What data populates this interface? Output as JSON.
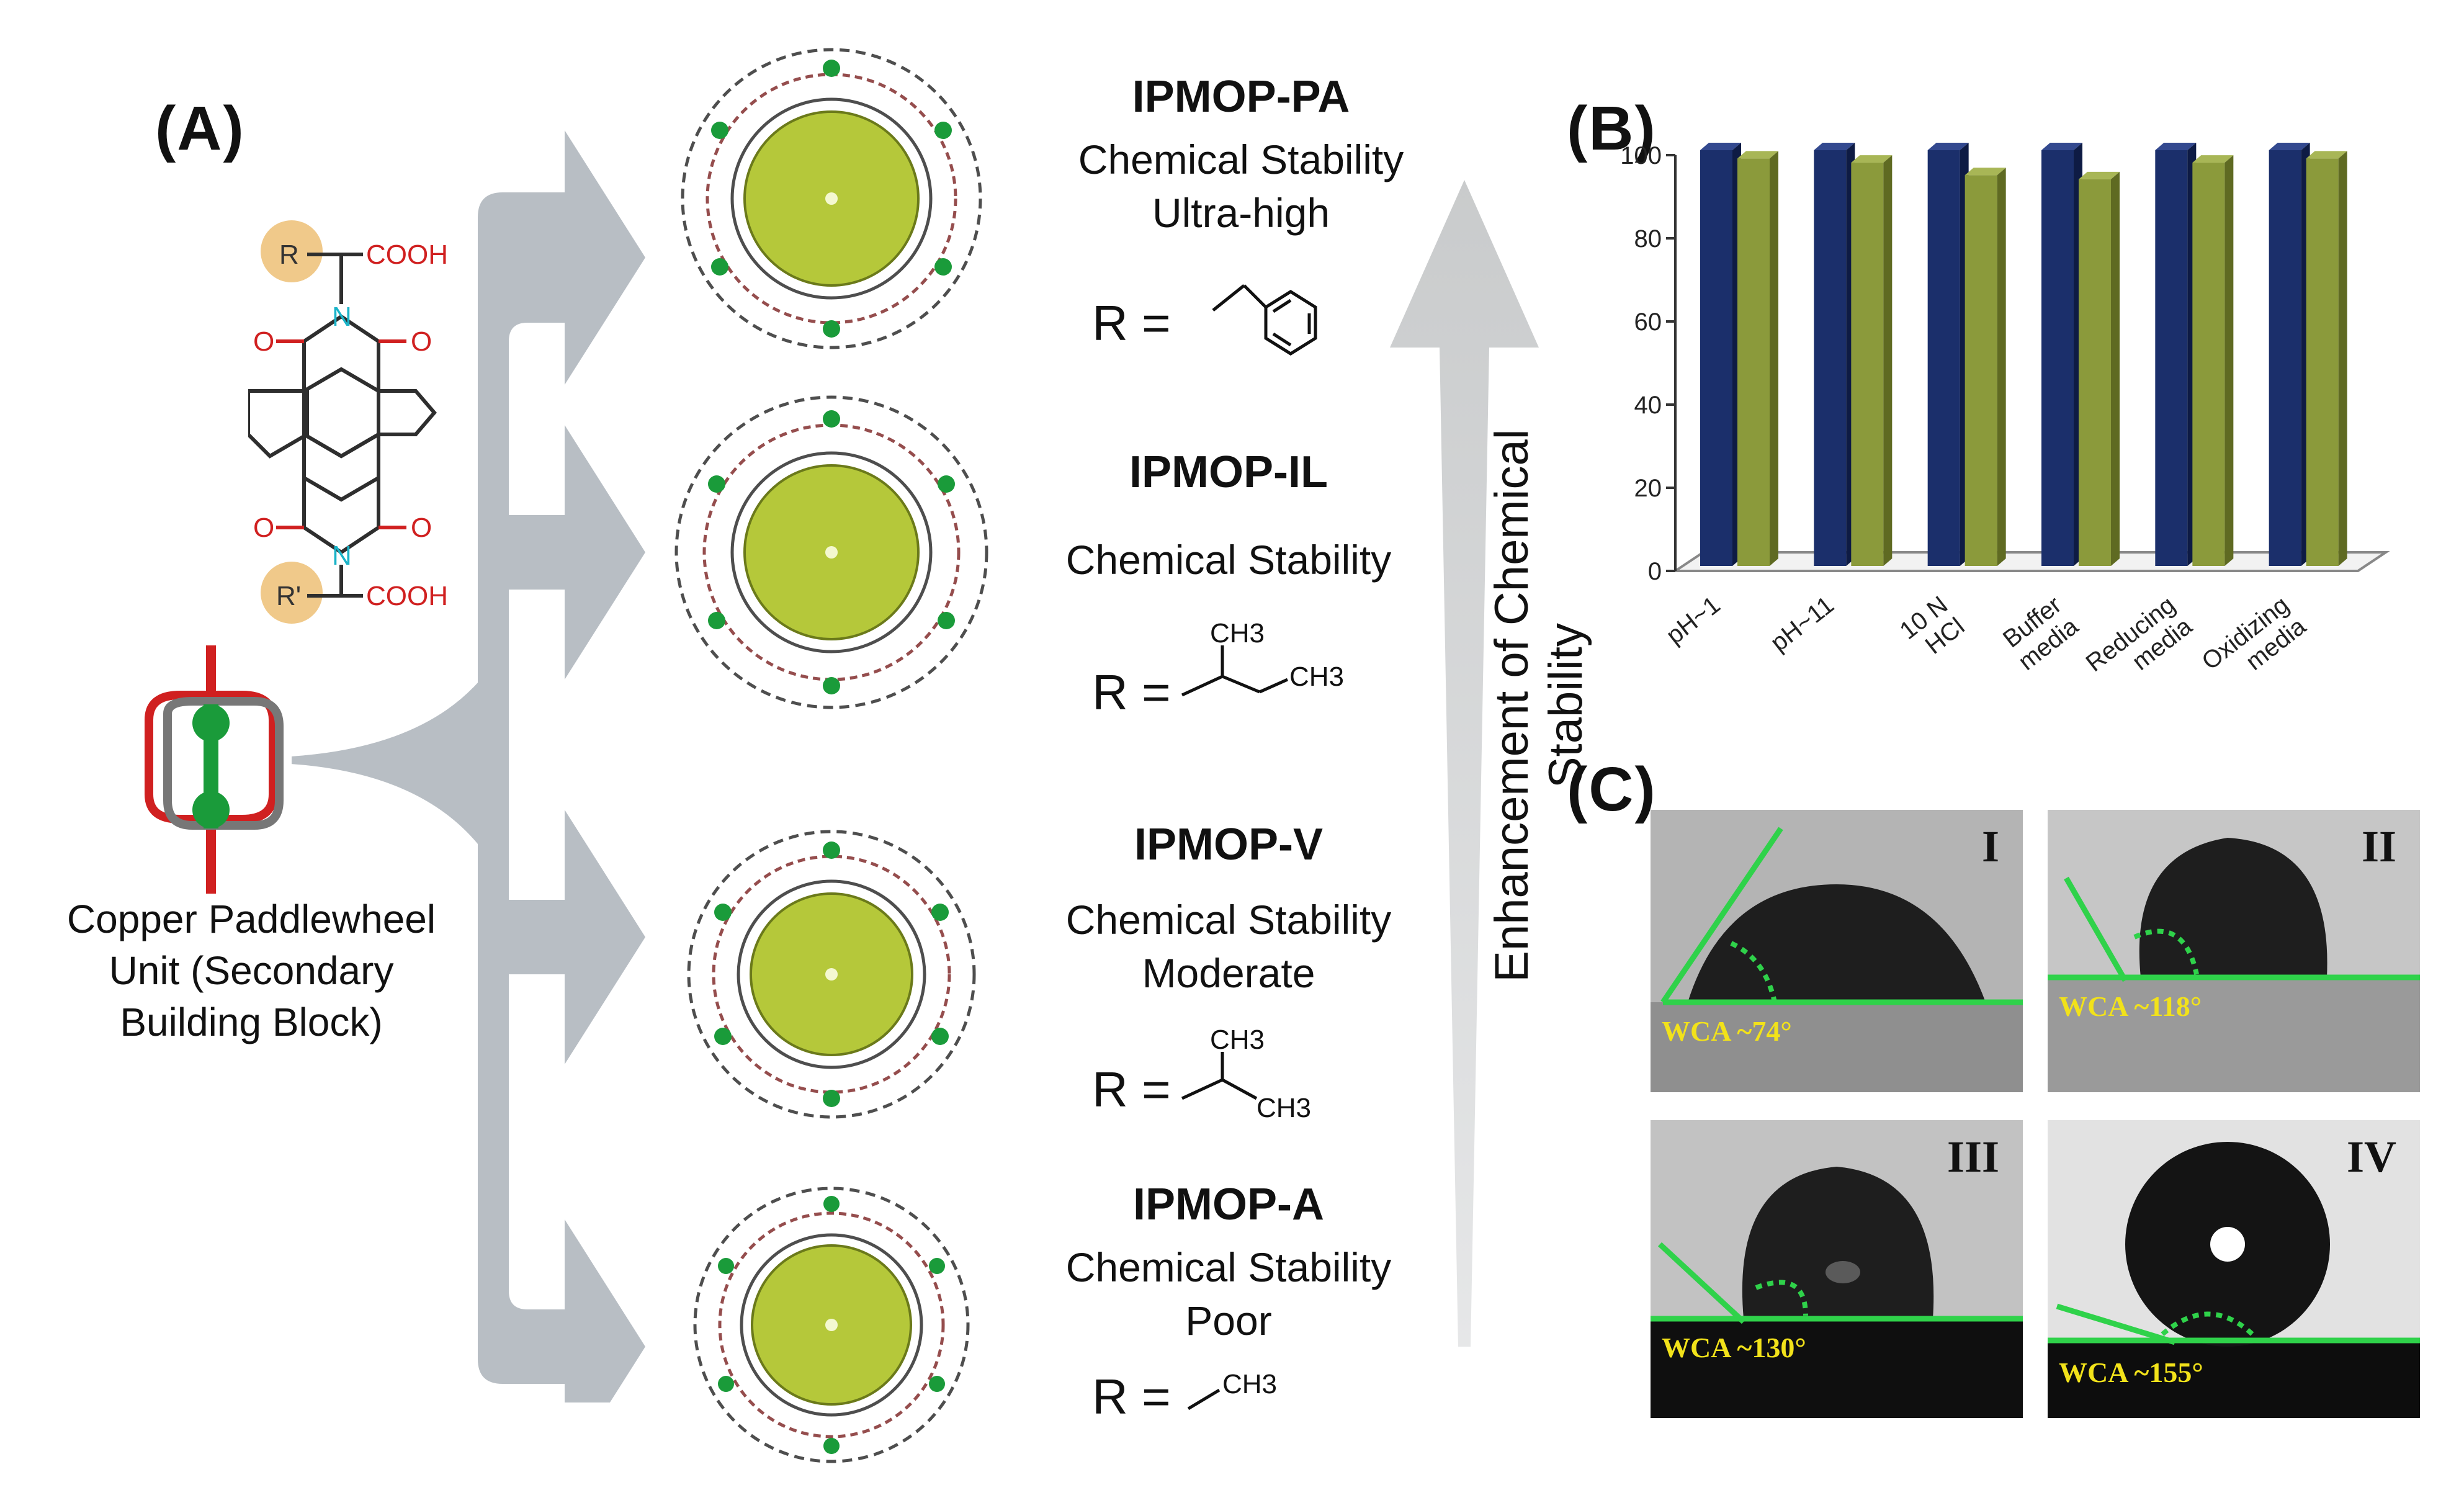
{
  "panels": {
    "a": "(A)",
    "b": "(B)",
    "c": "(C)"
  },
  "sbu": {
    "label_lines": [
      "Copper Paddlewheel",
      "Unit (Secondary",
      "Building Block)"
    ]
  },
  "linker": {
    "r_top": "R",
    "r_bottom": "R'",
    "acid_top": "COOH",
    "acid_bottom": "COOH",
    "o": "O",
    "n": "N"
  },
  "mops": [
    {
      "name": "IPMOP-PA",
      "lines": [
        "Chemical Stability",
        "Ultra-high"
      ],
      "r_label": "R =",
      "r_sub": []
    },
    {
      "name": "IPMOP-IL",
      "lines": [
        "Chemical Stability"
      ],
      "r_label": "R =",
      "r_sub": [
        "CH3",
        "CH3"
      ]
    },
    {
      "name": "IPMOP-V",
      "lines": [
        "Chemical Stability",
        "Moderate"
      ],
      "r_label": "R =",
      "r_sub": [
        "CH3",
        "CH3"
      ]
    },
    {
      "name": "IPMOP-A",
      "lines": [
        "Chemical Stability",
        "Poor"
      ],
      "r_label": "R =",
      "r_sub": [
        "CH3"
      ]
    }
  ],
  "arrow_label": "Enhancement of Chemical Stability",
  "colors": {
    "arrow_gray": "#b8bec4",
    "sphere": "#b5c83a",
    "bar_blue": "#1b2f6b",
    "bar_green": "#8b9a3b",
    "green_line": "#2fd24a",
    "wca_yellow": "#f2e21a"
  },
  "chart_data": {
    "type": "bar",
    "categories": [
      "pH~1",
      "pH~11",
      "10 N HCl",
      "Buffer media",
      "Reducing media",
      "Oxidizing media"
    ],
    "category_lines": [
      [
        "pH~1"
      ],
      [
        "pH~11"
      ],
      [
        "10 N",
        "HCl"
      ],
      [
        "Buffer",
        "media"
      ],
      [
        "Reducing",
        "media"
      ],
      [
        "Oxidizing",
        "media"
      ]
    ],
    "series": [
      {
        "values": [
          100,
          100,
          100,
          100,
          100,
          100
        ]
      },
      {
        "values": [
          98,
          97,
          94,
          93,
          97,
          98
        ]
      }
    ],
    "yticks": [
      0,
      20,
      40,
      60,
      80,
      100
    ],
    "ylim": [
      0,
      100
    ],
    "title": "",
    "xlabel": "",
    "ylabel": ""
  },
  "wca": [
    {
      "roman": "I",
      "label": "WCA ~74°"
    },
    {
      "roman": "II",
      "label": "WCA ~118°"
    },
    {
      "roman": "III",
      "label": "WCA ~130°"
    },
    {
      "roman": "IV",
      "label": "WCA ~155°"
    }
  ]
}
